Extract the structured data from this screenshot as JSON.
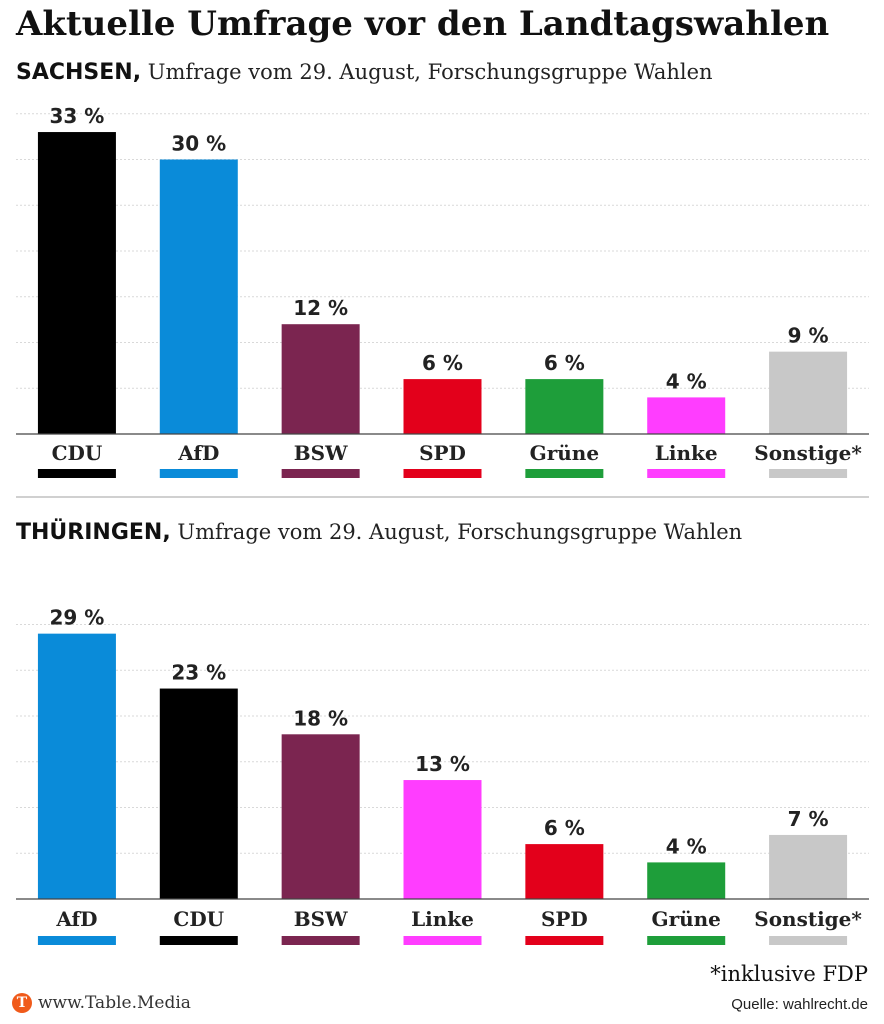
{
  "title": "Aktuelle Umfrage vor den Landtagswahlen",
  "footnote": "*inklusive FDP",
  "site": "www.Table.Media",
  "logo_letter": "T",
  "source": "Quelle: wahlrecht.de",
  "chart_data": [
    {
      "type": "bar",
      "region": "SACHSEN,",
      "subtitle": "Umfrage vom 29. August, Forschungsgruppe Wahlen",
      "categories": [
        "CDU",
        "AfD",
        "BSW",
        "SPD",
        "Grüne",
        "Linke",
        "Sonstige*"
      ],
      "values": [
        33,
        30,
        12,
        6,
        6,
        4,
        9
      ],
      "value_labels": [
        "33 %",
        "30 %",
        "12 %",
        "6 %",
        "6 %",
        "4 %",
        "9 %"
      ],
      "colors": [
        "#000000",
        "#0a8bd9",
        "#7b2550",
        "#e3001b",
        "#1e9e3a",
        "#ff3dff",
        "#c8c8c8"
      ],
      "ylim": [
        0,
        35
      ],
      "grid": true,
      "legend": "none"
    },
    {
      "type": "bar",
      "region": "THÜRINGEN,",
      "subtitle": "Umfrage vom 29. August, Forschungsgruppe Wahlen",
      "categories": [
        "AfD",
        "CDU",
        "BSW",
        "Linke",
        "SPD",
        "Grüne",
        "Sonstige*"
      ],
      "values": [
        29,
        23,
        18,
        13,
        6,
        4,
        7
      ],
      "value_labels": [
        "29 %",
        "23 %",
        "18 %",
        "13 %",
        "6 %",
        "4 %",
        "7 %"
      ],
      "colors": [
        "#0a8bd9",
        "#000000",
        "#7b2550",
        "#ff3dff",
        "#e3001b",
        "#1e9e3a",
        "#c8c8c8"
      ],
      "ylim": [
        0,
        30
      ],
      "grid": true,
      "legend": "none"
    }
  ]
}
